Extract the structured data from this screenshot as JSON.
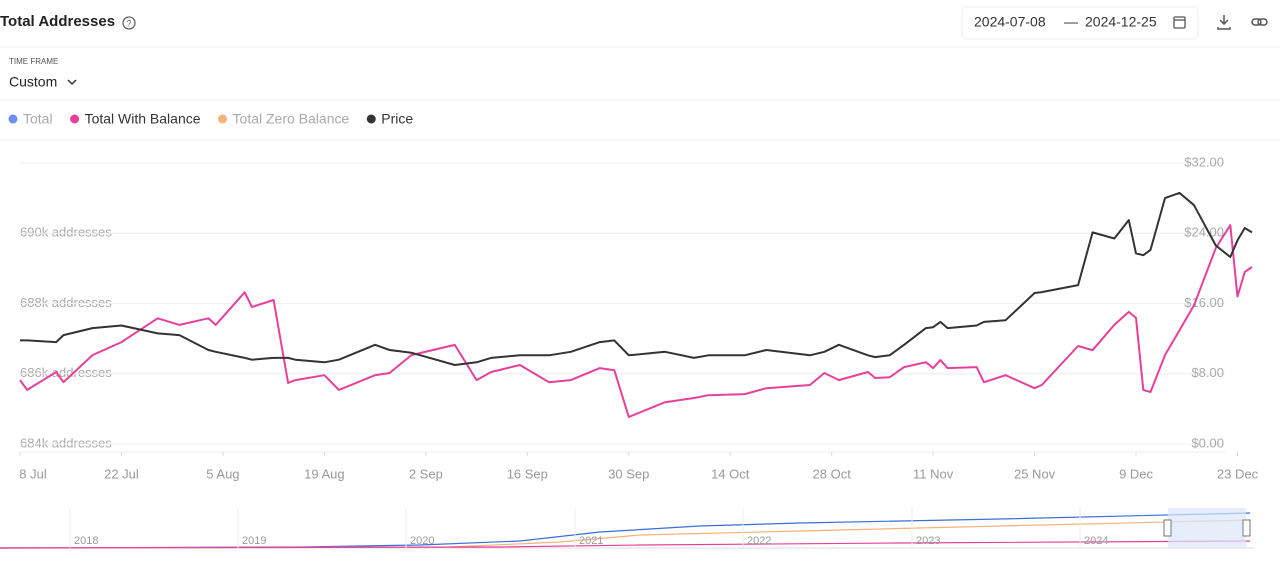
{
  "header": {
    "title": "Total Addresses",
    "date_from": "2024-07-08",
    "date_sep": "—",
    "date_to": "2024-12-25",
    "timeframe_label": "TIME FRAME",
    "timeframe_value": "Custom"
  },
  "chart_data": {
    "type": "line",
    "x": [
      "2024-07-08",
      "2024-07-09",
      "2024-07-13",
      "2024-07-14",
      "2024-07-18",
      "2024-07-22",
      "2024-07-27",
      "2024-07-30",
      "2024-08-03",
      "2024-08-04",
      "2024-08-08",
      "2024-08-09",
      "2024-08-12",
      "2024-08-14",
      "2024-08-15",
      "2024-08-19",
      "2024-08-21",
      "2024-08-26",
      "2024-08-28",
      "2024-08-31",
      "2024-09-06",
      "2024-09-09",
      "2024-09-11",
      "2024-09-15",
      "2024-09-19",
      "2024-09-22",
      "2024-09-26",
      "2024-09-28",
      "2024-09-30",
      "2024-10-05",
      "2024-10-09",
      "2024-10-11",
      "2024-10-16",
      "2024-10-19",
      "2024-10-25",
      "2024-10-27",
      "2024-10-29",
      "2024-11-02",
      "2024-11-03",
      "2024-11-05",
      "2024-11-07",
      "2024-11-10",
      "2024-11-11",
      "2024-11-12",
      "2024-11-13",
      "2024-11-17",
      "2024-11-18",
      "2024-11-21",
      "2024-11-25",
      "2024-11-26",
      "2024-12-01",
      "2024-12-03",
      "2024-12-06",
      "2024-12-08",
      "2024-12-09",
      "2024-12-10",
      "2024-12-11",
      "2024-12-13",
      "2024-12-15",
      "2024-12-17",
      "2024-12-20",
      "2024-12-22",
      "2024-12-23",
      "2024-12-24",
      "2024-12-25"
    ],
    "series": [
      {
        "name": "Total",
        "color": "#6b8ef0",
        "visible": false
      },
      {
        "name": "Total With Balance",
        "color": "#e8409a",
        "visible": true,
        "axis": "y",
        "values": [
          685820,
          685540,
          686050,
          685760,
          686530,
          686900,
          687580,
          687390,
          687580,
          687390,
          688320,
          687900,
          688100,
          685740,
          685820,
          685960,
          685540,
          685960,
          686020,
          686530,
          686820,
          685820,
          686050,
          686250,
          685760,
          685820,
          686160,
          686100,
          684770,
          685190,
          685310,
          685390,
          685420,
          685590,
          685680,
          686020,
          685820,
          686050,
          685880,
          685900,
          686190,
          686330,
          686160,
          686390,
          686160,
          686190,
          685760,
          685960,
          685590,
          685680,
          686790,
          686670,
          687390,
          687760,
          687590,
          685540,
          685480,
          686530,
          687240,
          687950,
          689580,
          690230,
          688200,
          688900,
          689040
        ]
      },
      {
        "name": "Total Zero Balance",
        "color": "#f5b27a",
        "visible": false
      },
      {
        "name": "Price",
        "color": "#333333",
        "visible": true,
        "axis": "y2",
        "values": [
          11.8,
          11.8,
          11.6,
          12.4,
          13.2,
          13.5,
          12.6,
          12.4,
          10.7,
          10.5,
          9.8,
          9.6,
          9.8,
          9.8,
          9.6,
          9.3,
          9.6,
          11.3,
          10.7,
          10.4,
          9.0,
          9.3,
          9.8,
          10.1,
          10.1,
          10.5,
          11.6,
          11.8,
          10.1,
          10.5,
          9.8,
          10.1,
          10.1,
          10.7,
          10.1,
          10.5,
          11.3,
          10.1,
          9.9,
          10.1,
          11.3,
          13.2,
          13.3,
          13.9,
          13.2,
          13.5,
          13.9,
          14.1,
          17.2,
          17.3,
          18.1,
          24.1,
          23.4,
          25.5,
          21.7,
          21.5,
          22.1,
          28.0,
          28.6,
          27.2,
          22.6,
          21.3,
          23.2,
          24.6,
          24.1
        ]
      }
    ],
    "xlim": [
      "2024-07-08",
      "2024-12-25"
    ],
    "xticks": [
      {
        "value": "2024-07-08",
        "label": "8 Jul"
      },
      {
        "value": "2024-07-22",
        "label": "22 Jul"
      },
      {
        "value": "2024-08-05",
        "label": "5 Aug"
      },
      {
        "value": "2024-08-19",
        "label": "19 Aug"
      },
      {
        "value": "2024-09-02",
        "label": "2 Sep"
      },
      {
        "value": "2024-09-16",
        "label": "16 Sep"
      },
      {
        "value": "2024-09-30",
        "label": "30 Sep"
      },
      {
        "value": "2024-10-14",
        "label": "14 Oct"
      },
      {
        "value": "2024-10-28",
        "label": "28 Oct"
      },
      {
        "value": "2024-11-11",
        "label": "11 Nov"
      },
      {
        "value": "2024-11-25",
        "label": "25 Nov"
      },
      {
        "value": "2024-12-09",
        "label": "9 Dec"
      },
      {
        "value": "2024-12-23",
        "label": "23 Dec"
      }
    ],
    "ylim": [
      684000,
      692000
    ],
    "yticks": [
      {
        "value": 684000,
        "label": "684k addresses"
      },
      {
        "value": 686000,
        "label": "686k addresses"
      },
      {
        "value": 688000,
        "label": "688k addresses"
      },
      {
        "value": 690000,
        "label": "690k addresses"
      }
    ],
    "y2lim": [
      0,
      32
    ],
    "y2ticks": [
      {
        "value": 0,
        "label": "$0.00"
      },
      {
        "value": 8,
        "label": "$8.00"
      },
      {
        "value": 16,
        "label": "$16.00"
      },
      {
        "value": 24,
        "label": "$24.00"
      },
      {
        "value": 32,
        "label": "$32.00"
      }
    ],
    "grid": true,
    "navigator": {
      "labels": [
        "2018",
        "2019",
        "2020",
        "2021",
        "2022",
        "2023",
        "2024"
      ]
    }
  }
}
